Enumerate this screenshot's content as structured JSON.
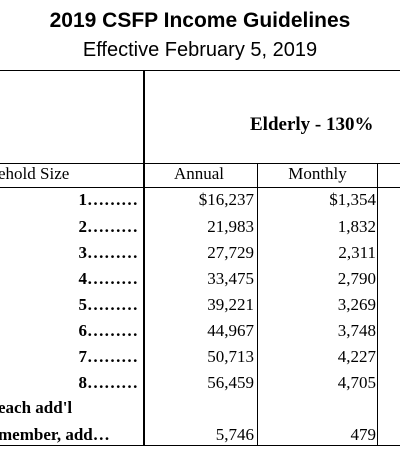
{
  "title": "2019 CSFP Income Guidelines",
  "subtitle": "Effective February 5, 2019",
  "table": {
    "group_header": "Elderly - 130%",
    "columns": {
      "household": "ehold Size",
      "annual": "Annual",
      "monthly": "Monthly"
    },
    "rows": [
      {
        "size": "1………",
        "annual": "$16,237",
        "monthly": "$1,354"
      },
      {
        "size": "2………",
        "annual": "21,983",
        "monthly": "1,832"
      },
      {
        "size": "3………",
        "annual": "27,729",
        "monthly": "2,311"
      },
      {
        "size": "4………",
        "annual": "33,475",
        "monthly": "2,790"
      },
      {
        "size": "5………",
        "annual": "39,221",
        "monthly": "3,269"
      },
      {
        "size": "6………",
        "annual": "44,967",
        "monthly": "3,748"
      },
      {
        "size": "7………",
        "annual": "50,713",
        "monthly": "4,227"
      },
      {
        "size": "8………",
        "annual": "56,459",
        "monthly": "4,705"
      }
    ],
    "additional": {
      "label_line1": "each add'l",
      "label_line2": "member, add…",
      "annual": "5,746",
      "monthly": "479"
    }
  }
}
